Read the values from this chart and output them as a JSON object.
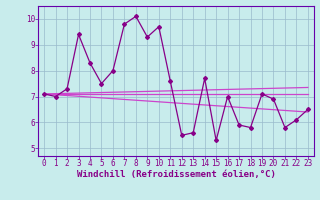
{
  "xlabel": "Windchill (Refroidissement éolien,°C)",
  "background_color": "#c8ecec",
  "line_color": "#880088",
  "trend_color": "#cc44cc",
  "xlim_min": -0.5,
  "xlim_max": 23.5,
  "ylim_min": 4.7,
  "ylim_max": 10.5,
  "yticks": [
    5,
    6,
    7,
    8,
    9,
    10
  ],
  "xticks": [
    0,
    1,
    2,
    3,
    4,
    5,
    6,
    7,
    8,
    9,
    10,
    11,
    12,
    13,
    14,
    15,
    16,
    17,
    18,
    19,
    20,
    21,
    22,
    23
  ],
  "series1_x": [
    0,
    1,
    2,
    3,
    4,
    5,
    6,
    7,
    8,
    9,
    10,
    11,
    12,
    13,
    14,
    15,
    16,
    17,
    18,
    19,
    20,
    21,
    22,
    23
  ],
  "series1_y": [
    7.1,
    7.0,
    7.3,
    9.4,
    8.3,
    7.5,
    8.0,
    9.8,
    10.1,
    9.3,
    9.7,
    7.6,
    5.5,
    5.6,
    7.7,
    5.3,
    7.0,
    5.9,
    5.8,
    7.1,
    6.9,
    5.8,
    6.1,
    6.5
  ],
  "trend1_x": [
    0,
    23
  ],
  "trend1_y": [
    7.1,
    6.4
  ],
  "trend2_x": [
    0,
    23
  ],
  "trend2_y": [
    7.1,
    7.35
  ],
  "trend3_x": [
    0,
    23
  ],
  "trend3_y": [
    7.1,
    7.1
  ],
  "grid_color": "#99bbcc",
  "spine_color": "#6600aa",
  "tick_color": "#880088",
  "tick_fontsize": 5.5,
  "xlabel_fontsize": 6.5
}
